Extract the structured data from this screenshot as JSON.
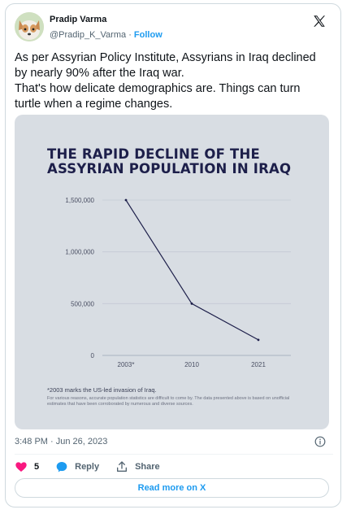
{
  "author": {
    "name": "Pradip Varma",
    "handle": "@Pradip_K_Varma",
    "separator": "·",
    "follow_label": "Follow"
  },
  "tweet": {
    "lines": [
      "As per Assyrian Policy Institute, Assyrians in Iraq declined",
      "by nearly 90% after the Iraq war.",
      "That's how delicate demographics are. Things can turn",
      "turtle when a regime changes."
    ],
    "timestamp": "3:48 PM · Jun 26, 2023"
  },
  "chart_data": {
    "type": "line",
    "title_lines": [
      "THE RAPID DECLINE OF THE",
      "ASSYRIAN POPULATION IN IRAQ"
    ],
    "categories": [
      "2003*",
      "2010",
      "2021"
    ],
    "values": [
      1500000,
      500000,
      150000
    ],
    "yticks": [
      "1,500,000",
      "1,000,000",
      "500,000",
      "0"
    ],
    "ylim": [
      0,
      1500000
    ],
    "grid": true,
    "footnote": "*2003 marks the US-led invasion of Iraq.",
    "disclaimer": "For various reasons, accurate population statistics are difficult to come by. The data presented above is based on unofficial estimates that have been corroborated by numerous and diverse sources.",
    "line_color": "#1d1f4a",
    "background": "#d8dde3"
  },
  "actions": {
    "like_count": "5",
    "reply_label": "Reply",
    "share_label": "Share",
    "read_more_label": "Read more on X"
  },
  "icons": {
    "logo": "x-logo-icon",
    "like": "heart-icon",
    "reply": "reply-bubble-icon",
    "share": "share-icon",
    "info": "info-icon"
  },
  "colors": {
    "accent": "#1d9bf0",
    "heart": "#f91880",
    "muted": "#536471"
  }
}
